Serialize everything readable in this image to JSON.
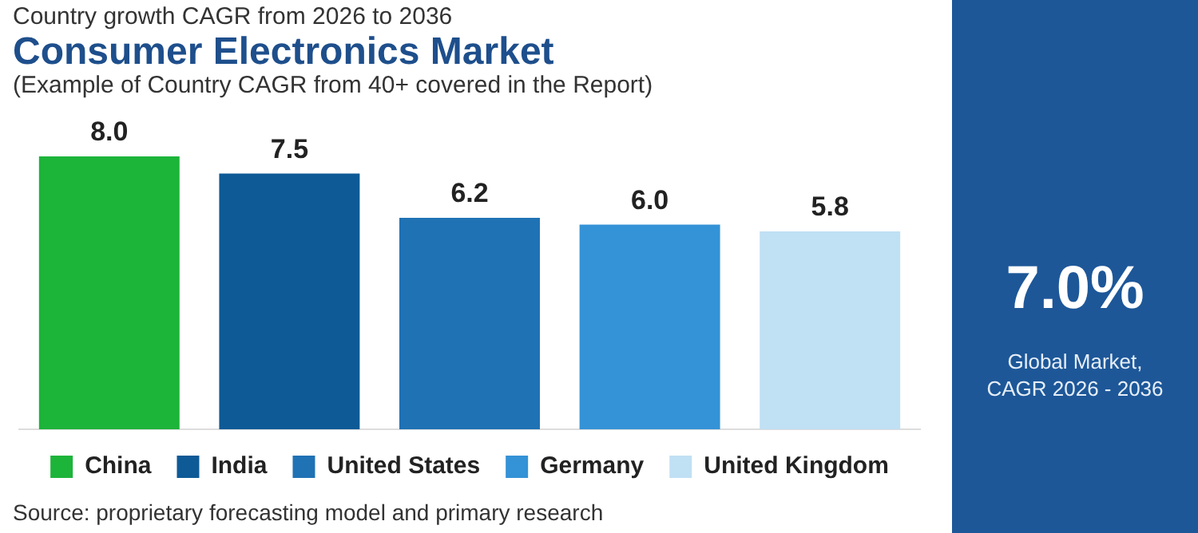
{
  "chart_data": [
    {
      "type": "bar",
      "title": "Consumer Electronics Market",
      "subtitle": "(Example of Country CAGR from 40+ covered in the Report)",
      "annotations": [
        "Country growth CAGR from 2026 to 2036",
        "Source: proprietary forecasting model and primary research"
      ],
      "categories": [
        null
      ],
      "series": [
        {
          "name": "China",
          "color": "#1db43a",
          "values": [
            8.0
          ],
          "value_labels": [
            "8.0"
          ]
        },
        {
          "name": "India",
          "color": "#0d5a96",
          "values": [
            7.5
          ],
          "value_labels": [
            "7.5"
          ]
        },
        {
          "name": "United States",
          "color": "#1f72b4",
          "values": [
            6.2
          ],
          "value_labels": [
            "6.2"
          ]
        },
        {
          "name": "Germany",
          "color": "#3492d6",
          "values": [
            6.0
          ],
          "value_labels": [
            "6.0"
          ]
        },
        {
          "name": "United Kingdom",
          "color": "#c0e0f4",
          "values": [
            5.8
          ],
          "value_labels": [
            "5.8"
          ]
        }
      ],
      "tick_labels": false,
      "legend": "bottom"
    },
    {
      "type": "other",
      "title": "7.0%",
      "subtitle": "Global Market, CAGR 2026 - 2036"
    }
  ]
}
